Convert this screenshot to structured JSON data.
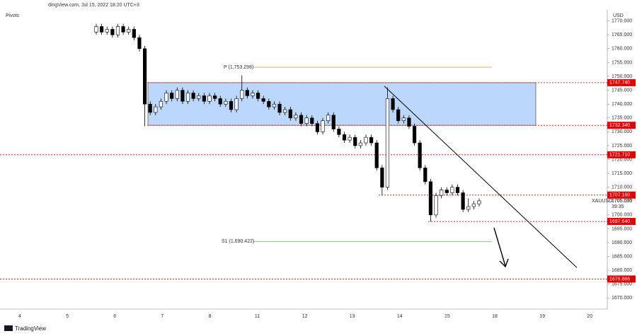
{
  "header": "dingView.com, Jul 15, 2022 18:20 UTC+3",
  "indicator": "Pivots",
  "currency": "USD",
  "brand": "TradingView",
  "chart_data": {
    "type": "candlestick",
    "symbol": "XAUUSD",
    "countdown": "39:35",
    "last_price": {
      "value": 1705.075,
      "label": "1705.075"
    },
    "up_color": "#ffffff",
    "down_color": "#000000",
    "x_labels": [
      "4",
      "5",
      "6",
      "7",
      "8",
      "11",
      "12",
      "13",
      "14",
      "15",
      "18",
      "19",
      "20"
    ],
    "ylim": [
      1666,
      1774
    ],
    "yticks": [
      {
        "value": 1670,
        "label": "1670.000"
      },
      {
        "value": 1675,
        "label": "1675.000"
      },
      {
        "value": 1680,
        "label": "1680.000"
      },
      {
        "value": 1685,
        "label": "1685.000"
      },
      {
        "value": 1690,
        "label": "1690.000"
      },
      {
        "value": 1695,
        "label": "1695.000"
      },
      {
        "value": 1700,
        "label": "1700.000"
      },
      {
        "value": 1705,
        "label": "1705.000"
      },
      {
        "value": 1710,
        "label": "1710.000"
      },
      {
        "value": 1715,
        "label": "1715.000"
      },
      {
        "value": 1720,
        "label": "1720.000"
      },
      {
        "value": 1725,
        "label": "1725.000"
      },
      {
        "value": 1730,
        "label": "1730.000"
      },
      {
        "value": 1735,
        "label": "1735.000"
      },
      {
        "value": 1740,
        "label": "1740.000"
      },
      {
        "value": 1745,
        "label": "1745.000"
      },
      {
        "value": 1750,
        "label": "1750.000"
      },
      {
        "value": 1755,
        "label": "1755.000"
      },
      {
        "value": 1760,
        "label": "1760.000"
      },
      {
        "value": 1765,
        "label": "1765.000"
      },
      {
        "value": 1770,
        "label": "1770.000"
      }
    ],
    "open": [
      1766,
      1768,
      1766,
      1767,
      1765,
      1768,
      1766,
      1767,
      1764,
      1760,
      1740,
      1737,
      1739,
      1741,
      1744,
      1742,
      1745,
      1741,
      1744,
      1742,
      1743,
      1741,
      1743,
      1742,
      1740,
      1741,
      1738,
      1742,
      1745,
      1743,
      1744,
      1742,
      1741,
      1739,
      1740,
      1737,
      1738,
      1735,
      1736,
      1733,
      1735,
      1733,
      1730,
      1734,
      1736,
      1731,
      1729,
      1727,
      1728,
      1725,
      1726,
      1728,
      1726,
      1717,
      1710,
      1742,
      1738,
      1734,
      1735,
      1732,
      1726,
      1717,
      1712,
      1700,
      1707,
      1709,
      1708,
      1710,
      1708,
      1702,
      1703,
      1704
    ],
    "high": [
      1769,
      1769,
      1768,
      1768,
      1769,
      1769,
      1768,
      1768,
      1765,
      1761,
      1741,
      1740,
      1742,
      1745,
      1745,
      1746,
      1746,
      1745,
      1745,
      1744,
      1744,
      1744,
      1744,
      1743,
      1742,
      1742,
      1743,
      1750.4,
      1746,
      1745,
      1745,
      1743,
      1742,
      1741,
      1741,
      1739,
      1739,
      1737,
      1737,
      1736,
      1736,
      1734,
      1735,
      1737,
      1737,
      1732,
      1730,
      1729,
      1729,
      1727,
      1729,
      1729,
      1727,
      1718,
      1746,
      1743,
      1739,
      1736,
      1736,
      1733,
      1727,
      1718,
      1713,
      1708,
      1710,
      1710,
      1711,
      1711,
      1709,
      1706,
      1705,
      1706
    ],
    "low": [
      1765,
      1765,
      1765,
      1764,
      1764,
      1765,
      1765,
      1763,
      1759,
      1732,
      1736,
      1736,
      1738,
      1740,
      1741,
      1741,
      1740,
      1740,
      1741,
      1741,
      1740,
      1740,
      1741,
      1739,
      1739,
      1737,
      1737,
      1741,
      1742,
      1742,
      1741,
      1740,
      1738,
      1738,
      1736,
      1736,
      1734,
      1734,
      1732,
      1732,
      1732,
      1729,
      1729,
      1733,
      1730,
      1728,
      1726,
      1726,
      1724,
      1724,
      1725,
      1725,
      1716,
      1707.2,
      1709,
      1737,
      1733,
      1733,
      1731,
      1725,
      1716,
      1711,
      1697.6,
      1699,
      1706,
      1707,
      1707,
      1707,
      1701,
      1701,
      1702,
      1703
    ],
    "close": [
      1768,
      1766,
      1767,
      1765,
      1768,
      1766,
      1767,
      1764,
      1760,
      1740,
      1737,
      1739,
      1741,
      1744,
      1742,
      1745,
      1741,
      1744,
      1742,
      1743,
      1741,
      1743,
      1742,
      1740,
      1741,
      1738,
      1742,
      1745,
      1743,
      1744,
      1742,
      1741,
      1739,
      1740,
      1737,
      1738,
      1735,
      1736,
      1733,
      1735,
      1733,
      1730,
      1734,
      1736,
      1731,
      1729,
      1727,
      1728,
      1725,
      1726,
      1728,
      1726,
      1717,
      1710,
      1742,
      1738,
      1734,
      1735,
      1732,
      1726,
      1717,
      1712,
      1700,
      1707,
      1709,
      1708,
      1710,
      1708,
      1702,
      1703,
      1704,
      1705.075
    ],
    "levels": [
      {
        "value": 1747.74,
        "label": "1747.740",
        "color": "#e00000"
      },
      {
        "value": 1732.34,
        "label": "1732.340",
        "color": "#e00000"
      },
      {
        "value": 1721.71,
        "label": "1721.710",
        "color": "#e00000"
      },
      {
        "value": 1707.16,
        "label": "1707.160",
        "color": "#e00000"
      },
      {
        "value": 1697.64,
        "label": "1697.640",
        "color": "#e00000"
      },
      {
        "value": 1676.866,
        "label": "1676.866",
        "color": "#e00000"
      }
    ],
    "zone": {
      "top": 1747.74,
      "bottom": 1732.34,
      "color": "#bbd7fb"
    },
    "pivots": [
      {
        "name": "P (1,753.298)",
        "value": 1753.298,
        "color": "#f0a040"
      },
      {
        "name": "S1 (1,690.422)",
        "value": 1690.422,
        "color": "#6cc06c"
      }
    ],
    "trendline": {
      "start": 1746.5,
      "end": 1681
    }
  }
}
